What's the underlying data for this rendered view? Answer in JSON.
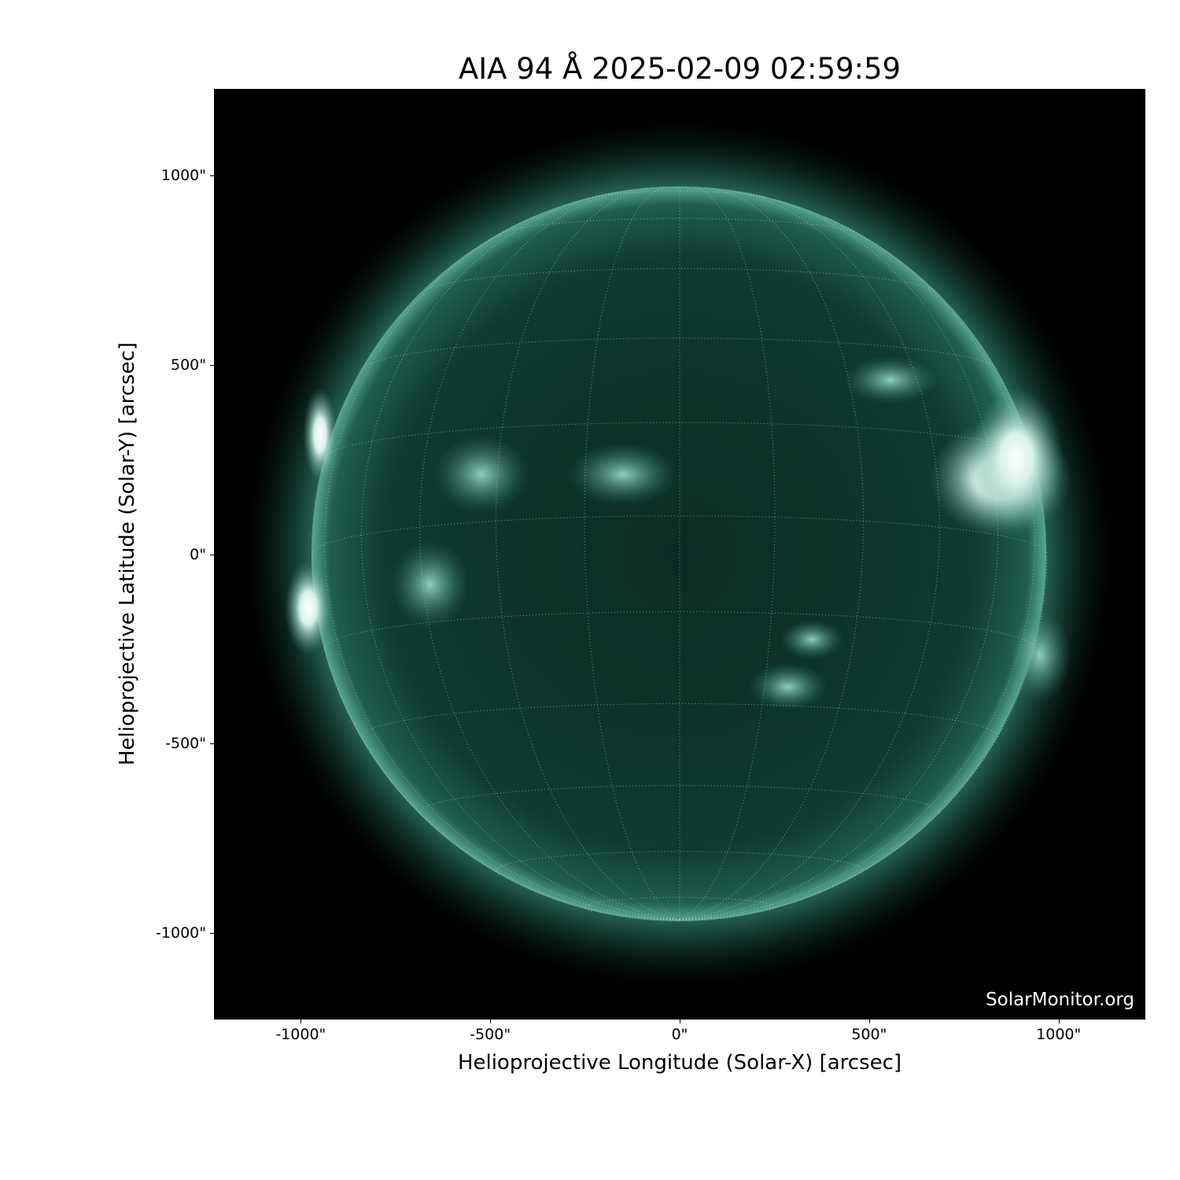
{
  "chart_data": {
    "type": "image",
    "title": "AIA 94 Å 2025-02-09 02:59:59",
    "xlabel": "Helioprojective Longitude (Solar-X) [arcsec]",
    "ylabel": "Helioprojective Latitude (Solar-Y) [arcsec]",
    "xlim": [
      -1229,
      1229
    ],
    "ylim": [
      -1229,
      1229
    ],
    "xticks": [
      -1000,
      -500,
      0,
      500,
      1000
    ],
    "xtick_labels": [
      "-1000\"",
      "-500\"",
      "0\"",
      "500\"",
      "1000\""
    ],
    "yticks": [
      1000,
      500,
      0,
      -500,
      -1000
    ],
    "ytick_labels": [
      "1000\"",
      "500\"",
      "0\"",
      "-500\"",
      "-1000\""
    ],
    "solar_radius_arcsec": 970,
    "grid": "heliographic, dotted, 15° spacing",
    "colormap": "sdoaia94",
    "colors": {
      "disk": "#0e3a2e",
      "limb": "#6fb8a4",
      "bright": "#ffffff",
      "background": "#000000"
    }
  },
  "credit": "SolarMonitor.org"
}
